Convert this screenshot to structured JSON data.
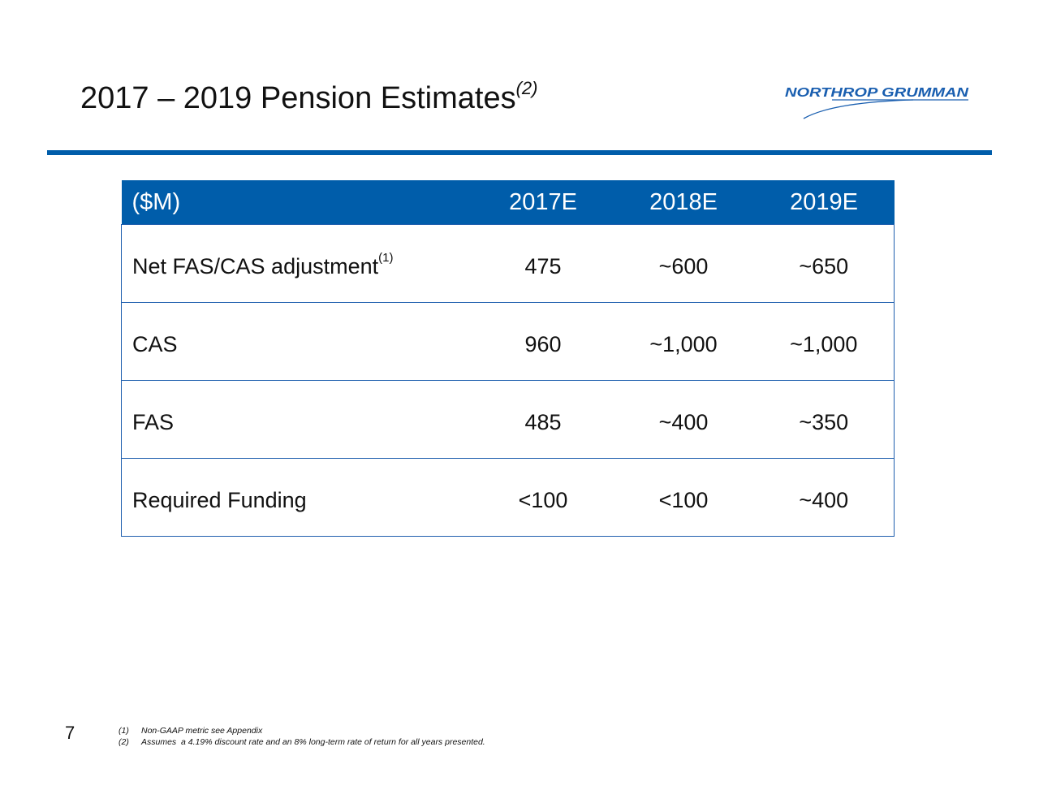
{
  "title": {
    "text": "2017 – 2019 Pension Estimates",
    "superscript": "(2)"
  },
  "logo": {
    "text": "NORTHROP GRUMMAN"
  },
  "colors": {
    "accent": "#005daa"
  },
  "table": {
    "headers": [
      "($M)",
      "2017E",
      "2018E",
      "2019E"
    ],
    "rows": [
      {
        "label": "Net FAS/CAS adjustment",
        "note": "(1)",
        "values": [
          "475",
          "~600",
          "~650"
        ]
      },
      {
        "label": "CAS",
        "note": "",
        "values": [
          "960",
          "~1,000",
          "~1,000"
        ]
      },
      {
        "label": "FAS",
        "note": "",
        "values": [
          "485",
          "~400",
          "~350"
        ]
      },
      {
        "label": "Required Funding",
        "note": "",
        "values": [
          "<100",
          "<100",
          "~400"
        ]
      }
    ]
  },
  "page_number": "7",
  "footnotes": [
    {
      "marker": "(1)",
      "text": "Non-GAAP metric see Appendix"
    },
    {
      "marker": "(2)",
      "text": "Assumes  a 4.19% discount rate and an 8% long-term rate of return for all years presented."
    }
  ]
}
